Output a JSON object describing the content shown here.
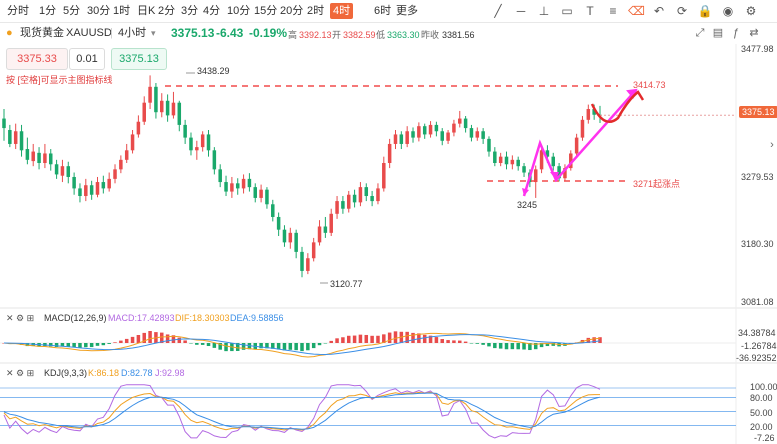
{
  "toolbar": {
    "timeframes": [
      "分时",
      "1分",
      "5分",
      "30分",
      "1时",
      "日K",
      "2分",
      "3分",
      "4分",
      "10分",
      "15分",
      "20分",
      "2时",
      "4时",
      "6时",
      "更多"
    ],
    "active_timeframe": "4时",
    "icons": [
      "trend-line-icon",
      "horizontal-line-icon",
      "measure-icon",
      "rectangle-icon",
      "text-icon",
      "fibonacci-icon",
      "eraser-icon",
      "undo-icon",
      "sync-icon",
      "lock-icon",
      "eye-icon",
      "settings-icon"
    ]
  },
  "info": {
    "name": "现货黄金",
    "symbol": "XAUUSD",
    "period": "4小时",
    "price": "3375.13",
    "change": "-6.43",
    "change_pct": "-0.19%",
    "high_label": "高",
    "high": "3392.13",
    "open_label": "开",
    "open": "3382.59",
    "low_label": "低",
    "low": "3363.30",
    "prev_close_label": "昨收",
    "prev_close": "3381.56"
  },
  "order": {
    "sell_price": "3375.33",
    "lots": "0.01",
    "buy_price": "3375.13"
  },
  "hint_text": "按 [空格]可显示主图指标线",
  "colors": {
    "up": "#e84b4b",
    "down": "#1aa86b",
    "accent": "#f0683a",
    "arrow": "#ff33ee",
    "dash": "#f24b4b"
  },
  "chart_data": {
    "type": "candlestick",
    "y_axis_labels": [
      "3477.98",
      "3375.13",
      "3279.53",
      "3180.30",
      "3081.08"
    ],
    "ylim": [
      3081.08,
      3477.98
    ],
    "annotations": {
      "high_label": "3438.29",
      "low_label": "3120.77",
      "point_label": "3245",
      "resistance_label": "3414.73",
      "support_label": "3271起涨点",
      "current_price": "3375.13"
    },
    "candles": [
      [
        3370,
        3355,
        3385,
        3335
      ],
      [
        3352,
        3330,
        3360,
        3325
      ],
      [
        3330,
        3350,
        3362,
        3322
      ],
      [
        3350,
        3320,
        3360,
        3310
      ],
      [
        3322,
        3305,
        3340,
        3298
      ],
      [
        3303,
        3318,
        3330,
        3295
      ],
      [
        3316,
        3300,
        3325,
        3290
      ],
      [
        3300,
        3315,
        3330,
        3292
      ],
      [
        3315,
        3298,
        3322,
        3288
      ],
      [
        3298,
        3282,
        3305,
        3275
      ],
      [
        3280,
        3295,
        3305,
        3270
      ],
      [
        3295,
        3278,
        3302,
        3268
      ],
      [
        3278,
        3260,
        3285,
        3250
      ],
      [
        3260,
        3248,
        3268,
        3238
      ],
      [
        3248,
        3265,
        3275,
        3240
      ],
      [
        3265,
        3250,
        3272,
        3242
      ],
      [
        3250,
        3270,
        3278,
        3246
      ],
      [
        3270,
        3260,
        3280,
        3252
      ],
      [
        3260,
        3275,
        3285,
        3255
      ],
      [
        3275,
        3290,
        3298,
        3268
      ],
      [
        3290,
        3305,
        3312,
        3284
      ],
      [
        3305,
        3320,
        3330,
        3300
      ],
      [
        3320,
        3345,
        3352,
        3315
      ],
      [
        3345,
        3365,
        3375,
        3340
      ],
      [
        3365,
        3395,
        3405,
        3360
      ],
      [
        3395,
        3420,
        3438,
        3385
      ],
      [
        3420,
        3380,
        3426,
        3370
      ],
      [
        3380,
        3398,
        3410,
        3372
      ],
      [
        3398,
        3375,
        3408,
        3365
      ],
      [
        3375,
        3395,
        3412,
        3370
      ],
      [
        3395,
        3360,
        3398,
        3350
      ],
      [
        3360,
        3340,
        3368,
        3330
      ],
      [
        3340,
        3320,
        3348,
        3312
      ],
      [
        3320,
        3325,
        3335,
        3305
      ],
      [
        3325,
        3345,
        3350,
        3318
      ],
      [
        3345,
        3320,
        3352,
        3310
      ],
      [
        3320,
        3290,
        3325,
        3282
      ],
      [
        3290,
        3270,
        3298,
        3262
      ],
      [
        3270,
        3255,
        3280,
        3248
      ],
      [
        3255,
        3268,
        3278,
        3245
      ],
      [
        3268,
        3260,
        3276,
        3250
      ],
      [
        3260,
        3275,
        3282,
        3252
      ],
      [
        3275,
        3262,
        3284,
        3255
      ],
      [
        3262,
        3245,
        3268,
        3238
      ],
      [
        3245,
        3258,
        3266,
        3238
      ],
      [
        3258,
        3235,
        3262,
        3228
      ],
      [
        3235,
        3215,
        3242,
        3208
      ],
      [
        3215,
        3195,
        3222,
        3185
      ],
      [
        3195,
        3175,
        3202,
        3168
      ],
      [
        3175,
        3190,
        3198,
        3165
      ],
      [
        3190,
        3160,
        3195,
        3150
      ],
      [
        3160,
        3130,
        3168,
        3120
      ],
      [
        3130,
        3150,
        3158,
        3125
      ],
      [
        3150,
        3175,
        3182,
        3145
      ],
      [
        3175,
        3200,
        3210,
        3170
      ],
      [
        3200,
        3190,
        3215,
        3182
      ],
      [
        3190,
        3220,
        3228,
        3185
      ],
      [
        3220,
        3240,
        3248,
        3212
      ],
      [
        3240,
        3228,
        3248,
        3220
      ],
      [
        3228,
        3250,
        3256,
        3222
      ],
      [
        3250,
        3238,
        3258,
        3230
      ],
      [
        3238,
        3262,
        3270,
        3232
      ],
      [
        3262,
        3248,
        3268,
        3240
      ],
      [
        3248,
        3240,
        3256,
        3232
      ],
      [
        3240,
        3260,
        3268,
        3235
      ],
      [
        3260,
        3300,
        3310,
        3255
      ],
      [
        3300,
        3330,
        3338,
        3292
      ],
      [
        3330,
        3345,
        3352,
        3322
      ],
      [
        3345,
        3330,
        3350,
        3322
      ],
      [
        3330,
        3350,
        3358,
        3325
      ],
      [
        3350,
        3340,
        3356,
        3332
      ],
      [
        3340,
        3358,
        3364,
        3334
      ],
      [
        3358,
        3345,
        3362,
        3338
      ],
      [
        3345,
        3360,
        3366,
        3340
      ],
      [
        3360,
        3350,
        3365,
        3342
      ],
      [
        3350,
        3335,
        3355,
        3328
      ],
      [
        3335,
        3348,
        3352,
        3330
      ],
      [
        3348,
        3362,
        3368,
        3342
      ],
      [
        3362,
        3370,
        3382,
        3356
      ],
      [
        3370,
        3355,
        3374,
        3348
      ],
      [
        3355,
        3340,
        3360,
        3334
      ],
      [
        3340,
        3350,
        3356,
        3335
      ],
      [
        3350,
        3338,
        3355,
        3330
      ],
      [
        3338,
        3318,
        3342,
        3310
      ],
      [
        3318,
        3300,
        3325,
        3295
      ],
      [
        3300,
        3310,
        3316,
        3295
      ],
      [
        3310,
        3298,
        3318,
        3290
      ],
      [
        3298,
        3305,
        3312,
        3290
      ],
      [
        3305,
        3295,
        3310,
        3288
      ],
      [
        3295,
        3285,
        3300,
        3278
      ],
      [
        3285,
        3270,
        3290,
        3262
      ],
      [
        3270,
        3290,
        3296,
        3245
      ],
      [
        3290,
        3320,
        3328,
        3284
      ],
      [
        3320,
        3310,
        3328,
        3300
      ],
      [
        3310,
        3295,
        3316,
        3288
      ],
      [
        3295,
        3276,
        3300,
        3271
      ],
      [
        3276,
        3292,
        3298,
        3272
      ],
      [
        3292,
        3315,
        3320,
        3288
      ],
      [
        3315,
        3340,
        3346,
        3310
      ],
      [
        3340,
        3368,
        3374,
        3335
      ],
      [
        3368,
        3385,
        3392,
        3362
      ],
      [
        3385,
        3376,
        3392,
        3368
      ],
      [
        3376,
        3375,
        3390,
        3363
      ]
    ],
    "macd": {
      "label": "MACD(12,26,9)",
      "macd_label": "MACD:17.42893",
      "dif_label": "DIF:18.30303",
      "dea_label": "DEA:9.58856",
      "axis_labels": [
        "34.38784",
        "-1.26784",
        "-36.92352"
      ]
    },
    "kdj": {
      "label": "KDJ(9,3,3)",
      "k_label": "K:86.18",
      "d_label": "D:82.78",
      "j_label": "J:92.98",
      "axis_labels": [
        "100.00",
        "80.00",
        "50.00",
        "20.00",
        "-7.26"
      ]
    }
  }
}
